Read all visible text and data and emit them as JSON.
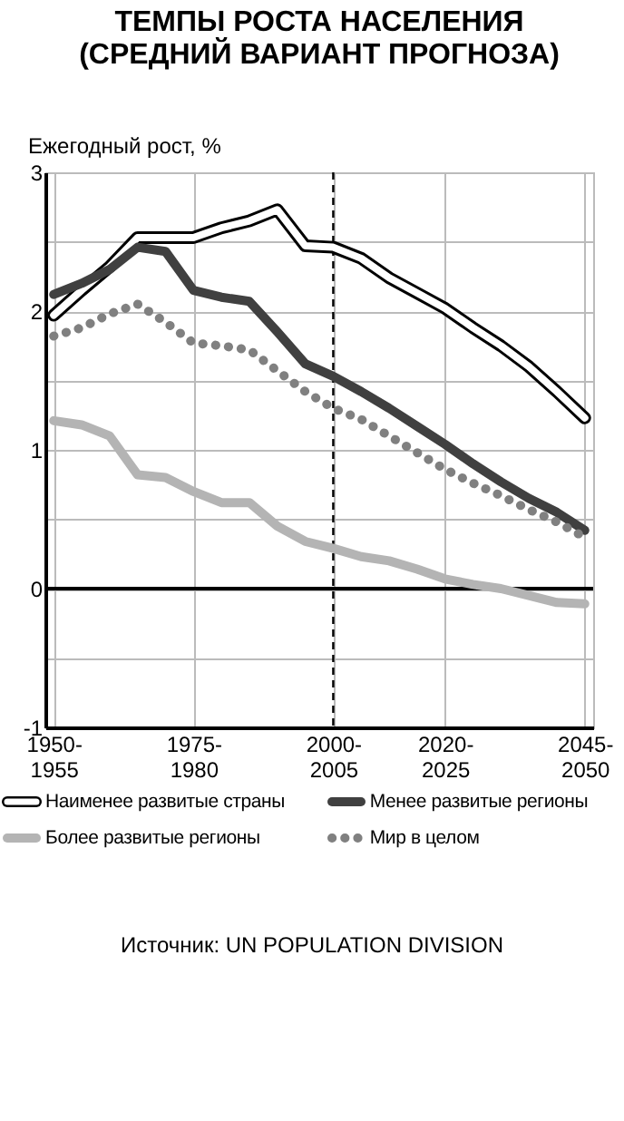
{
  "chart_data": {
    "type": "line",
    "title": "ТЕМПЫ РОСТА НАСЕЛЕНИЯ\n(СРЕДНИЙ ВАРИАНТ ПРОГНОЗА)",
    "ylabel": "Ежегодный рост, %",
    "categories": [
      "1950-1955",
      null,
      null,
      null,
      null,
      "1975-1980",
      null,
      null,
      null,
      null,
      "2000-2005",
      null,
      null,
      null,
      "2020-2025",
      null,
      null,
      null,
      null,
      "2045-2050"
    ],
    "series": [
      {
        "name": "Наименее развитые страны",
        "color": "#ffffff",
        "values": [
          1.97,
          2.15,
          2.32,
          2.53,
          2.53,
          2.53,
          2.6,
          2.65,
          2.73,
          2.47,
          2.46,
          2.38,
          2.24,
          2.13,
          2.02,
          1.88,
          1.75,
          1.6,
          1.42,
          1.23
        ]
      },
      {
        "name": "Менее развитые регионы",
        "color": "#404040",
        "values": [
          2.12,
          2.2,
          2.3,
          2.46,
          2.43,
          2.15,
          2.1,
          2.07,
          1.85,
          1.62,
          1.53,
          1.42,
          1.3,
          1.17,
          1.04,
          0.9,
          0.77,
          0.65,
          0.55,
          0.42
        ]
      },
      {
        "name": "Более развитые регионы",
        "color": "#b4b4b4",
        "values": [
          1.21,
          1.18,
          1.1,
          0.82,
          0.8,
          0.7,
          0.62,
          0.62,
          0.45,
          0.34,
          0.29,
          0.23,
          0.2,
          0.14,
          0.07,
          0.03,
          0.0,
          -0.05,
          -0.1,
          -0.11
        ]
      },
      {
        "name": "Мир в целом",
        "color": "#808080",
        "line_style": "dotted",
        "values": [
          1.82,
          1.88,
          1.98,
          2.05,
          1.92,
          1.77,
          1.75,
          1.72,
          1.57,
          1.42,
          1.3,
          1.22,
          1.1,
          0.98,
          0.86,
          0.76,
          0.67,
          0.57,
          0.48,
          0.37
        ]
      }
    ],
    "ylim": [
      -1,
      3
    ],
    "yticks": [
      -1,
      {
        "value": -0.5,
        "label": null
      },
      0,
      {
        "value": 0.5,
        "label": null
      },
      1,
      {
        "value": 1.5,
        "label": null
      },
      2,
      {
        "value": 2.5,
        "label": null
      },
      3
    ],
    "grid": true,
    "legend": "bottom",
    "line_style": "solid",
    "ref_lines": [
      {
        "axis": "x",
        "value": "2000-2005",
        "line_style": "dashed",
        "color": "#000000"
      },
      {
        "axis": "y",
        "value": 0,
        "color": "#000000"
      }
    ],
    "annotations": [
      "Источник: UN POPULATION DIVISION"
    ]
  }
}
